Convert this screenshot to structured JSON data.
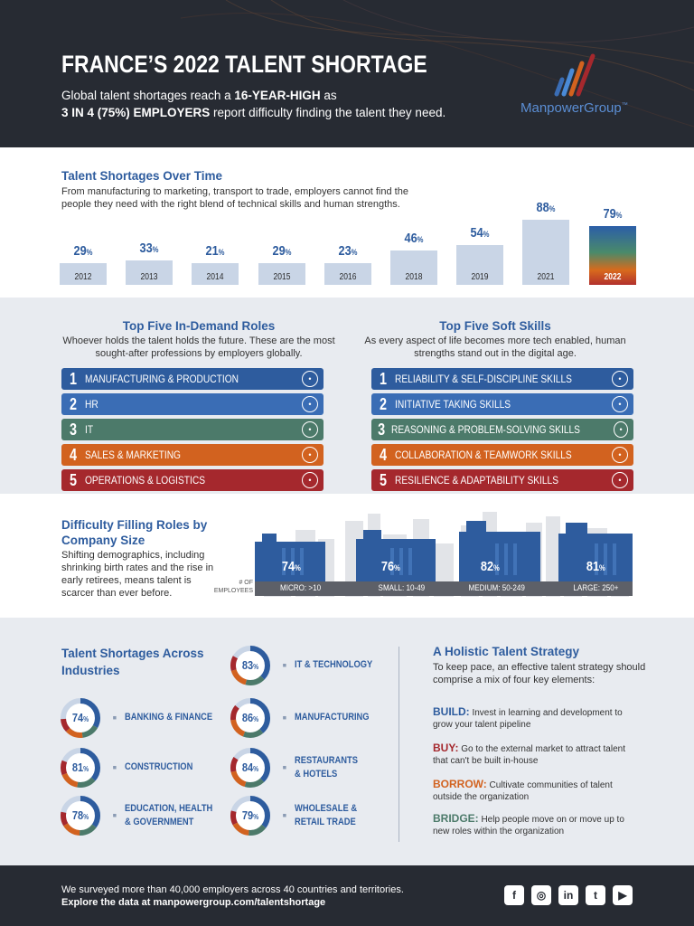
{
  "header": {
    "title": "FRANCE’S 2022 TALENT SHORTAGE",
    "sub_pre": "Global talent shortages reach a ",
    "sub_b1": "16-YEAR-HIGH",
    "sub_mid": " as",
    "sub_b2": "3 IN 4 (75%) EMPLOYERS",
    "sub_post": " report difficulty finding the talent they need.",
    "brand": "ManpowerGroup",
    "brand_mark": "™"
  },
  "over_time": {
    "title": "Talent Shortages Over Time",
    "desc": "From manufacturing to marketing, transport to trade, employers cannot find the people they need with the right blend of technical skills and human strengths.",
    "unit": "%"
  },
  "chart_data": {
    "type": "bar",
    "categories": [
      "2012",
      "2013",
      "2014",
      "2015",
      "2016",
      "2018",
      "2019",
      "2021",
      "2022"
    ],
    "values": [
      29,
      33,
      21,
      29,
      23,
      46,
      54,
      88,
      79
    ],
    "highlight": "2022",
    "ylim": [
      0,
      100
    ],
    "bar_color": "#c9d5e6"
  },
  "roles": {
    "title": "Top Five In-Demand Roles",
    "desc": "Whoever holds the talent holds the future. These are the most sought-after professions by employers globally.",
    "items": [
      {
        "num": "1",
        "label": "MANUFACTURING & PRODUCTION",
        "icon": "gear-arm-icon",
        "color": "#2e5c9e"
      },
      {
        "num": "2",
        "label": "HR",
        "icon": "person-icon",
        "color": "#3a6db5"
      },
      {
        "num": "3",
        "label": "IT",
        "icon": "laptop-icon",
        "color": "#4c7a6a"
      },
      {
        "num": "4",
        "label": "SALES & MARKETING",
        "icon": "handshake-icon",
        "color": "#d2621f"
      },
      {
        "num": "5",
        "label": "OPERATIONS & LOGISTICS",
        "icon": "location-pin-icon",
        "color": "#a5282d"
      }
    ]
  },
  "skills": {
    "title": "Top Five Soft Skills",
    "desc": "As every aspect of life becomes more tech enabled, human strengths stand out in the digital age.",
    "items": [
      {
        "num": "1",
        "label": "RELIABILITY & SELF-DISCIPLINE SKILLS",
        "icon": "clipboard-icon",
        "color": "#2e5c9e"
      },
      {
        "num": "2",
        "label": "INITIATIVE TAKING SKILLS",
        "icon": "rocket-icon",
        "color": "#3a6db5"
      },
      {
        "num": "3",
        "label": "REASONING & PROBLEM-SOLVING SKILLS",
        "icon": "lightbulb-icon",
        "color": "#4c7a6a"
      },
      {
        "num": "4",
        "label": "COLLABORATION & TEAMWORK SKILLS",
        "icon": "team-icon",
        "color": "#d2621f"
      },
      {
        "num": "5",
        "label": "RESILIENCE & ADAPTABILITY SKILLS",
        "icon": "person-up-icon",
        "color": "#a5282d"
      }
    ]
  },
  "company_size": {
    "title": "Difficulty Filling Roles by Company Size",
    "desc": "Shifting demographics, including shrinking birth rates and the rise in early retirees, means talent is scarcer than ever before.",
    "axis_label": "# OF EMPLOYEES",
    "unit": "%",
    "items": [
      {
        "value": 74,
        "label": "MICRO: >10"
      },
      {
        "value": 76,
        "label": "SMALL: 10-49"
      },
      {
        "value": 82,
        "label": "MEDIUM: 50-249"
      },
      {
        "value": 81,
        "label": "LARGE: 250+"
      }
    ]
  },
  "industries": {
    "title": "Talent Shortages Across Industries",
    "unit": "%",
    "items": [
      {
        "value": 83,
        "line1": "IT & TECHNOLOGY",
        "line2": "",
        "icon": "cloud-icon"
      },
      {
        "value": 74,
        "line1": "BANKING & FINANCE",
        "line2": "",
        "icon": "bar-chart-icon"
      },
      {
        "value": 86,
        "line1": "MANUFACTURING",
        "line2": "",
        "icon": "workers-icon"
      },
      {
        "value": 81,
        "line1": "CONSTRUCTION",
        "line2": "",
        "icon": "tools-icon"
      },
      {
        "value": 84,
        "line1": "RESTAURANTS",
        "line2": "& HOTELS",
        "icon": "food-cloche-icon"
      },
      {
        "value": 78,
        "line1": "EDUCATION, HEALTH",
        "line2": "& GOVERNMENT",
        "icon": "hands-icon"
      },
      {
        "value": 79,
        "line1": "WHOLESALE &",
        "line2": "RETAIL TRADE",
        "icon": "cart-icon"
      }
    ]
  },
  "strategy": {
    "title": "A Holistic Talent Strategy",
    "desc": "To keep pace, an effective talent strategy should comprise a mix of four key elements:",
    "items": [
      {
        "key": "BUILD:",
        "text": " Invest in learning and development to grow your talent pipeline",
        "color": "#2e5c9e"
      },
      {
        "key": "BUY:",
        "text": " Go to the external market to attract talent that can't be built in-house",
        "color": "#a5282d"
      },
      {
        "key": "BORROW:",
        "text": " Cultivate communities of talent outside the organization",
        "color": "#d2621f"
      },
      {
        "key": "BRIDGE:",
        "text": " Help people move on or move up to new roles within the organization",
        "color": "#4c7a6a"
      }
    ]
  },
  "footer": {
    "line1": "We surveyed more than 40,000 employers across 40 countries and territories.",
    "line2": "Explore the data at manpowergroup.com/talentshortage",
    "social": [
      {
        "name": "facebook-icon",
        "glyph": "f"
      },
      {
        "name": "instagram-icon",
        "glyph": "◎"
      },
      {
        "name": "linkedin-icon",
        "glyph": "in"
      },
      {
        "name": "twitter-icon",
        "glyph": "t"
      },
      {
        "name": "youtube-icon",
        "glyph": "▶"
      }
    ]
  }
}
